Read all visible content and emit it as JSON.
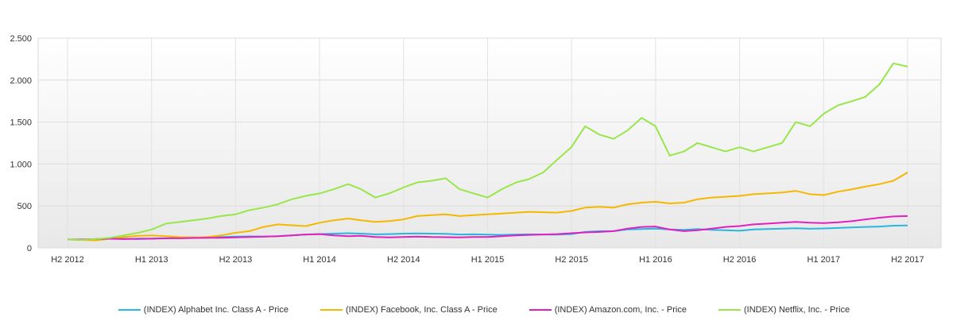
{
  "chart_data": {
    "type": "line",
    "title": "",
    "xlabel": "",
    "ylabel": "",
    "ylim": [
      0,
      2500
    ],
    "grid": true,
    "legend_placement": "bottom",
    "x_ticks": [
      "H2 2012",
      "H1 2013",
      "H2 2013",
      "H1 2014",
      "H2 2014",
      "H1 2015",
      "H2 2015",
      "H1 2016",
      "H2 2016",
      "H1 2017",
      "H2 2017"
    ],
    "y_ticks": [
      0,
      500,
      1000,
      1500,
      2000,
      2500
    ],
    "y_tick_labels": [
      "0",
      "500",
      "1.000",
      "1.500",
      "2.000",
      "2.500"
    ],
    "x_start": "2012-06-01",
    "x_end": "2017-06-01",
    "series": [
      {
        "name": "(INDEX) Alphabet Inc. Class A - Price",
        "color": "#29b6e0",
        "points": [
          [
            "2012-06-01",
            100
          ],
          [
            "2012-07-01",
            95
          ],
          [
            "2012-08-01",
            105
          ],
          [
            "2012-09-01",
            115
          ],
          [
            "2012-10-01",
            110
          ],
          [
            "2012-11-01",
            105
          ],
          [
            "2012-12-01",
            110
          ],
          [
            "2013-01-01",
            115
          ],
          [
            "2013-02-01",
            122
          ],
          [
            "2013-03-01",
            125
          ],
          [
            "2013-04-01",
            120
          ],
          [
            "2013-05-01",
            130
          ],
          [
            "2013-06-01",
            135
          ],
          [
            "2013-07-01",
            137
          ],
          [
            "2013-08-01",
            135
          ],
          [
            "2013-09-01",
            140
          ],
          [
            "2013-10-01",
            150
          ],
          [
            "2013-11-01",
            160
          ],
          [
            "2013-12-01",
            165
          ],
          [
            "2014-01-01",
            170
          ],
          [
            "2014-02-01",
            175
          ],
          [
            "2014-03-01",
            170
          ],
          [
            "2014-04-01",
            162
          ],
          [
            "2014-05-01",
            165
          ],
          [
            "2014-06-01",
            170
          ],
          [
            "2014-07-01",
            172
          ],
          [
            "2014-08-01",
            170
          ],
          [
            "2014-09-01",
            168
          ],
          [
            "2014-10-01",
            160
          ],
          [
            "2014-11-01",
            162
          ],
          [
            "2014-12-01",
            158
          ],
          [
            "2015-01-01",
            155
          ],
          [
            "2015-02-01",
            160
          ],
          [
            "2015-03-01",
            162
          ],
          [
            "2015-04-01",
            160
          ],
          [
            "2015-05-01",
            158
          ],
          [
            "2015-06-01",
            165
          ],
          [
            "2015-07-01",
            190
          ],
          [
            "2015-08-01",
            200
          ],
          [
            "2015-09-01",
            200
          ],
          [
            "2015-10-01",
            220
          ],
          [
            "2015-11-01",
            225
          ],
          [
            "2015-12-01",
            230
          ],
          [
            "2016-01-01",
            220
          ],
          [
            "2016-02-01",
            215
          ],
          [
            "2016-03-01",
            225
          ],
          [
            "2016-04-01",
            215
          ],
          [
            "2016-05-01",
            210
          ],
          [
            "2016-06-01",
            205
          ],
          [
            "2016-07-01",
            220
          ],
          [
            "2016-08-01",
            225
          ],
          [
            "2016-09-01",
            230
          ],
          [
            "2016-10-01",
            235
          ],
          [
            "2016-11-01",
            228
          ],
          [
            "2016-12-01",
            232
          ],
          [
            "2017-01-01",
            238
          ],
          [
            "2017-02-01",
            245
          ],
          [
            "2017-03-01",
            250
          ],
          [
            "2017-04-01",
            255
          ],
          [
            "2017-05-01",
            265
          ],
          [
            "2017-06-01",
            268
          ]
        ]
      },
      {
        "name": "(INDEX) Facebook, Inc. Class A - Price",
        "color": "#f5b800",
        "points": [
          [
            "2012-06-01",
            100
          ],
          [
            "2012-07-01",
            95
          ],
          [
            "2012-08-01",
            90
          ],
          [
            "2012-09-01",
            110
          ],
          [
            "2012-10-01",
            130
          ],
          [
            "2012-11-01",
            145
          ],
          [
            "2012-12-01",
            150
          ],
          [
            "2013-01-01",
            140
          ],
          [
            "2013-02-01",
            130
          ],
          [
            "2013-03-01",
            125
          ],
          [
            "2013-04-01",
            130
          ],
          [
            "2013-05-01",
            150
          ],
          [
            "2013-06-01",
            180
          ],
          [
            "2013-07-01",
            200
          ],
          [
            "2013-08-01",
            250
          ],
          [
            "2013-09-01",
            280
          ],
          [
            "2013-10-01",
            270
          ],
          [
            "2013-11-01",
            260
          ],
          [
            "2013-12-01",
            300
          ],
          [
            "2014-01-01",
            330
          ],
          [
            "2014-02-01",
            350
          ],
          [
            "2014-03-01",
            330
          ],
          [
            "2014-04-01",
            310
          ],
          [
            "2014-05-01",
            320
          ],
          [
            "2014-06-01",
            340
          ],
          [
            "2014-07-01",
            380
          ],
          [
            "2014-08-01",
            390
          ],
          [
            "2014-09-01",
            400
          ],
          [
            "2014-10-01",
            380
          ],
          [
            "2014-11-01",
            390
          ],
          [
            "2014-12-01",
            400
          ],
          [
            "2015-01-01",
            410
          ],
          [
            "2015-02-01",
            420
          ],
          [
            "2015-03-01",
            430
          ],
          [
            "2015-04-01",
            425
          ],
          [
            "2015-05-01",
            420
          ],
          [
            "2015-06-01",
            440
          ],
          [
            "2015-07-01",
            480
          ],
          [
            "2015-08-01",
            490
          ],
          [
            "2015-09-01",
            480
          ],
          [
            "2015-10-01",
            520
          ],
          [
            "2015-11-01",
            540
          ],
          [
            "2015-12-01",
            550
          ],
          [
            "2016-01-01",
            530
          ],
          [
            "2016-02-01",
            540
          ],
          [
            "2016-03-01",
            580
          ],
          [
            "2016-04-01",
            600
          ],
          [
            "2016-05-01",
            610
          ],
          [
            "2016-06-01",
            620
          ],
          [
            "2016-07-01",
            640
          ],
          [
            "2016-08-01",
            650
          ],
          [
            "2016-09-01",
            660
          ],
          [
            "2016-10-01",
            680
          ],
          [
            "2016-11-01",
            640
          ],
          [
            "2016-12-01",
            630
          ],
          [
            "2017-01-01",
            670
          ],
          [
            "2017-02-01",
            700
          ],
          [
            "2017-03-01",
            730
          ],
          [
            "2017-04-01",
            760
          ],
          [
            "2017-05-01",
            800
          ],
          [
            "2017-06-01",
            900
          ]
        ]
      },
      {
        "name": "(INDEX) Amazon.com, Inc. - Price",
        "color": "#e020c0",
        "points": [
          [
            "2012-06-01",
            100
          ],
          [
            "2012-07-01",
            100
          ],
          [
            "2012-08-01",
            105
          ],
          [
            "2012-09-01",
            110
          ],
          [
            "2012-10-01",
            105
          ],
          [
            "2012-11-01",
            110
          ],
          [
            "2012-12-01",
            110
          ],
          [
            "2013-01-01",
            115
          ],
          [
            "2013-02-01",
            115
          ],
          [
            "2013-03-01",
            118
          ],
          [
            "2013-04-01",
            120
          ],
          [
            "2013-05-01",
            120
          ],
          [
            "2013-06-01",
            125
          ],
          [
            "2013-07-01",
            130
          ],
          [
            "2013-08-01",
            135
          ],
          [
            "2013-09-01",
            140
          ],
          [
            "2013-10-01",
            150
          ],
          [
            "2013-11-01",
            160
          ],
          [
            "2013-12-01",
            165
          ],
          [
            "2014-01-01",
            150
          ],
          [
            "2014-02-01",
            140
          ],
          [
            "2014-03-01",
            145
          ],
          [
            "2014-04-01",
            130
          ],
          [
            "2014-05-01",
            125
          ],
          [
            "2014-06-01",
            130
          ],
          [
            "2014-07-01",
            135
          ],
          [
            "2014-08-01",
            130
          ],
          [
            "2014-09-01",
            128
          ],
          [
            "2014-10-01",
            125
          ],
          [
            "2014-11-01",
            130
          ],
          [
            "2014-12-01",
            130
          ],
          [
            "2015-01-01",
            140
          ],
          [
            "2015-02-01",
            150
          ],
          [
            "2015-03-01",
            155
          ],
          [
            "2015-04-01",
            160
          ],
          [
            "2015-05-01",
            165
          ],
          [
            "2015-06-01",
            175
          ],
          [
            "2015-07-01",
            185
          ],
          [
            "2015-08-01",
            190
          ],
          [
            "2015-09-01",
            200
          ],
          [
            "2015-10-01",
            230
          ],
          [
            "2015-11-01",
            250
          ],
          [
            "2015-12-01",
            255
          ],
          [
            "2016-01-01",
            220
          ],
          [
            "2016-02-01",
            200
          ],
          [
            "2016-03-01",
            210
          ],
          [
            "2016-04-01",
            230
          ],
          [
            "2016-05-01",
            250
          ],
          [
            "2016-06-01",
            260
          ],
          [
            "2016-07-01",
            280
          ],
          [
            "2016-08-01",
            290
          ],
          [
            "2016-09-01",
            300
          ],
          [
            "2016-10-01",
            310
          ],
          [
            "2016-11-01",
            300
          ],
          [
            "2016-12-01",
            295
          ],
          [
            "2017-01-01",
            305
          ],
          [
            "2017-02-01",
            320
          ],
          [
            "2017-03-01",
            340
          ],
          [
            "2017-04-01",
            360
          ],
          [
            "2017-05-01",
            375
          ],
          [
            "2017-06-01",
            380
          ]
        ]
      },
      {
        "name": "(INDEX) Netflix, Inc. - Price",
        "color": "#99e64a",
        "points": [
          [
            "2012-06-01",
            100
          ],
          [
            "2012-07-01",
            95
          ],
          [
            "2012-08-01",
            105
          ],
          [
            "2012-09-01",
            120
          ],
          [
            "2012-10-01",
            150
          ],
          [
            "2012-11-01",
            180
          ],
          [
            "2012-12-01",
            220
          ],
          [
            "2013-01-01",
            290
          ],
          [
            "2013-02-01",
            310
          ],
          [
            "2013-03-01",
            330
          ],
          [
            "2013-04-01",
            350
          ],
          [
            "2013-05-01",
            380
          ],
          [
            "2013-06-01",
            400
          ],
          [
            "2013-07-01",
            450
          ],
          [
            "2013-08-01",
            480
          ],
          [
            "2013-09-01",
            520
          ],
          [
            "2013-10-01",
            580
          ],
          [
            "2013-11-01",
            620
          ],
          [
            "2013-12-01",
            650
          ],
          [
            "2014-01-01",
            700
          ],
          [
            "2014-02-01",
            760
          ],
          [
            "2014-03-01",
            700
          ],
          [
            "2014-04-01",
            600
          ],
          [
            "2014-05-01",
            650
          ],
          [
            "2014-06-01",
            720
          ],
          [
            "2014-07-01",
            780
          ],
          [
            "2014-08-01",
            800
          ],
          [
            "2014-09-01",
            830
          ],
          [
            "2014-10-01",
            700
          ],
          [
            "2014-11-01",
            650
          ],
          [
            "2014-12-01",
            600
          ],
          [
            "2015-01-01",
            700
          ],
          [
            "2015-02-01",
            780
          ],
          [
            "2015-03-01",
            820
          ],
          [
            "2015-04-01",
            900
          ],
          [
            "2015-05-01",
            1050
          ],
          [
            "2015-06-01",
            1200
          ],
          [
            "2015-07-01",
            1450
          ],
          [
            "2015-08-01",
            1350
          ],
          [
            "2015-09-01",
            1300
          ],
          [
            "2015-10-01",
            1400
          ],
          [
            "2015-11-01",
            1550
          ],
          [
            "2015-12-01",
            1450
          ],
          [
            "2016-01-01",
            1100
          ],
          [
            "2016-02-01",
            1150
          ],
          [
            "2016-03-01",
            1250
          ],
          [
            "2016-04-01",
            1200
          ],
          [
            "2016-05-01",
            1150
          ],
          [
            "2016-06-01",
            1200
          ],
          [
            "2016-07-01",
            1150
          ],
          [
            "2016-08-01",
            1200
          ],
          [
            "2016-09-01",
            1250
          ],
          [
            "2016-10-01",
            1500
          ],
          [
            "2016-11-01",
            1450
          ],
          [
            "2016-12-01",
            1600
          ],
          [
            "2017-01-01",
            1700
          ],
          [
            "2017-02-01",
            1750
          ],
          [
            "2017-03-01",
            1800
          ],
          [
            "2017-04-01",
            1950
          ],
          [
            "2017-05-01",
            2200
          ],
          [
            "2017-06-01",
            2160
          ]
        ]
      }
    ]
  }
}
